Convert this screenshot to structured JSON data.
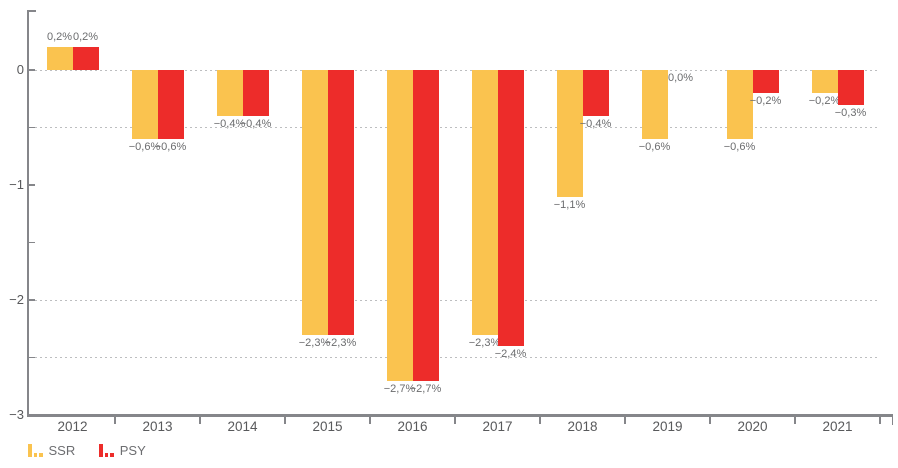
{
  "colors": {
    "ssr": "#FAC34F",
    "psy": "#ED2C2A",
    "axis": "#85868A",
    "grid": "#BDBEC0",
    "value_label_text": "#6B6C6E",
    "axis_label_text": "#58595B"
  },
  "chart_data": {
    "type": "bar",
    "categories": [
      "2012",
      "2013",
      "2014",
      "2015",
      "2016",
      "2017",
      "2018",
      "2019",
      "2020",
      "2021"
    ],
    "series": [
      {
        "name": "SSR",
        "color": "#FAC34F",
        "values": [
          0.2,
          -0.6,
          -0.4,
          -2.3,
          -2.7,
          -2.3,
          -1.1,
          -0.6,
          -0.6,
          -0.2
        ],
        "labels": [
          "0,2%",
          "−0,6%",
          "−0,4%",
          "−2,3%",
          "−2,7%",
          "−2,3%",
          "−1,1%",
          "−0,6%",
          "−0,6%",
          "−0,2%"
        ]
      },
      {
        "name": "PSY",
        "color": "#ED2C2A",
        "values": [
          0.2,
          -0.6,
          -0.4,
          -2.3,
          -2.7,
          -2.4,
          -0.4,
          0.0,
          -0.2,
          -0.3
        ],
        "labels": [
          "0,2%",
          "−0,6%",
          "−0,4%",
          "−2,3%",
          "−2,7%",
          "−2,4%",
          "−0,4%",
          "0,0%",
          "−0,2%",
          "−0,3%"
        ]
      }
    ],
    "value_suffix": "%",
    "decimal_separator": ",",
    "y_axis": {
      "tick_labels": [
        "0",
        "−1",
        "−2",
        "−3"
      ],
      "tick_values": [
        0,
        -1,
        -2,
        -3
      ],
      "minor_tick_values": [
        0,
        -0.5,
        -1,
        -1.5,
        -2,
        -2.5
      ],
      "ylim": [
        -3,
        0.5
      ]
    },
    "gridlines_at": [
      0,
      -0.5,
      -2,
      -2.5
    ],
    "grid_style": "dashed-horizontal",
    "legend_position": "bottom-left"
  },
  "legend": {
    "items": [
      {
        "label": "SSR",
        "color": "#FAC34F"
      },
      {
        "label": "PSY",
        "color": "#ED2C2A"
      }
    ]
  }
}
